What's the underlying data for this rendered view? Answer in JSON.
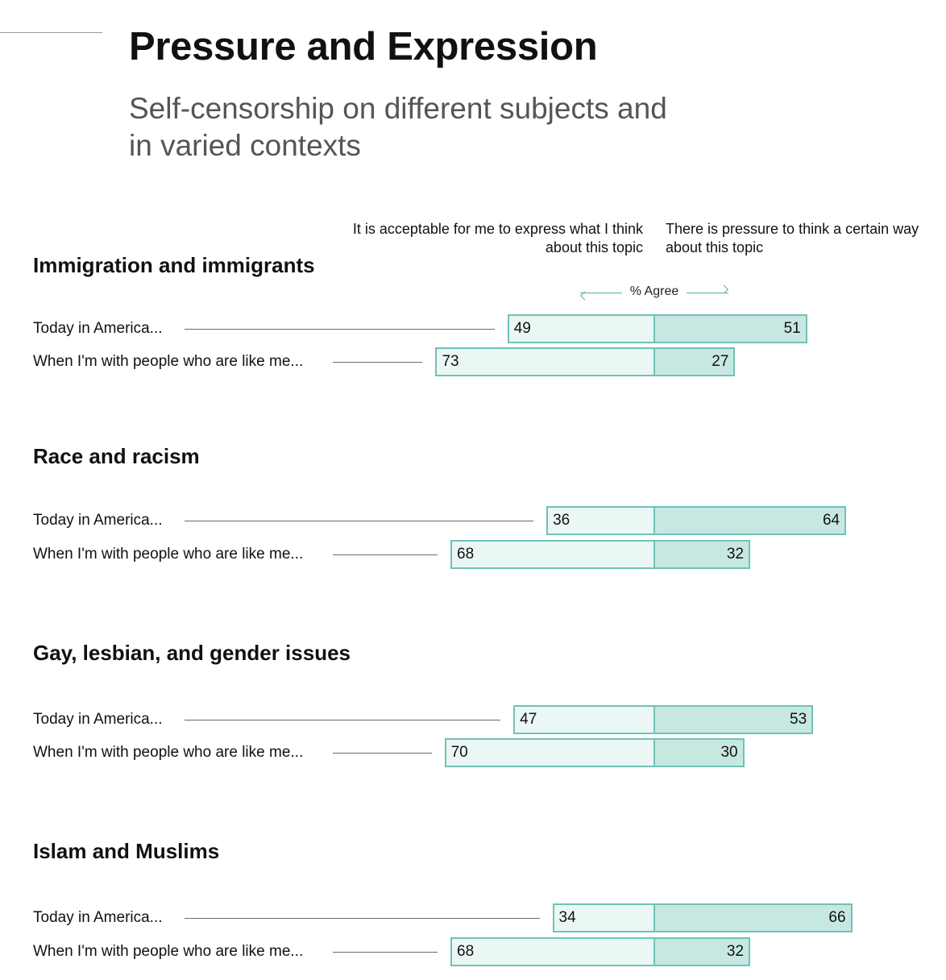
{
  "title": "Pressure and Expression",
  "subtitle": "Self-censorship on different subjects and in varied contexts",
  "column_headers": {
    "left": "It is acceptable for me to express what I think about this topic",
    "right": "There is pressure to think a certain way about this topic"
  },
  "axis_label": "% Agree",
  "colors": {
    "left_fill": "#ebf7f4",
    "right_fill": "#c6e8e1",
    "bar_border": "#6fc2b8"
  },
  "chart_data": {
    "type": "bar",
    "orientation": "horizontal-diverging",
    "title": "Pressure and Expression",
    "subtitle": "Self-censorship on different subjects and in varied contexts",
    "axis_label": "% Agree",
    "series_labels": [
      "It is acceptable for me to express what I think about this topic",
      "There is pressure to think a certain way about this topic"
    ],
    "groups": [
      {
        "topic": "Immigration and immigrants",
        "rows": [
          {
            "label": "Today in America...",
            "acceptable": 49,
            "pressure": 51
          },
          {
            "label": "When I'm with people who are like me...",
            "acceptable": 73,
            "pressure": 27
          }
        ]
      },
      {
        "topic": "Race and racism",
        "rows": [
          {
            "label": "Today in America...",
            "acceptable": 36,
            "pressure": 64
          },
          {
            "label": "When I'm with people who are like me...",
            "acceptable": 68,
            "pressure": 32
          }
        ]
      },
      {
        "topic": "Gay, lesbian, and gender issues",
        "rows": [
          {
            "label": "Today in America...",
            "acceptable": 47,
            "pressure": 53
          },
          {
            "label": "When I'm with people who are like me...",
            "acceptable": 70,
            "pressure": 30
          }
        ]
      },
      {
        "topic": "Islam and Muslims",
        "rows": [
          {
            "label": "Today in America...",
            "acceptable": 34,
            "pressure": 66
          },
          {
            "label": "When I'm with people who are like me...",
            "acceptable": 68,
            "pressure": 32
          }
        ]
      }
    ]
  }
}
